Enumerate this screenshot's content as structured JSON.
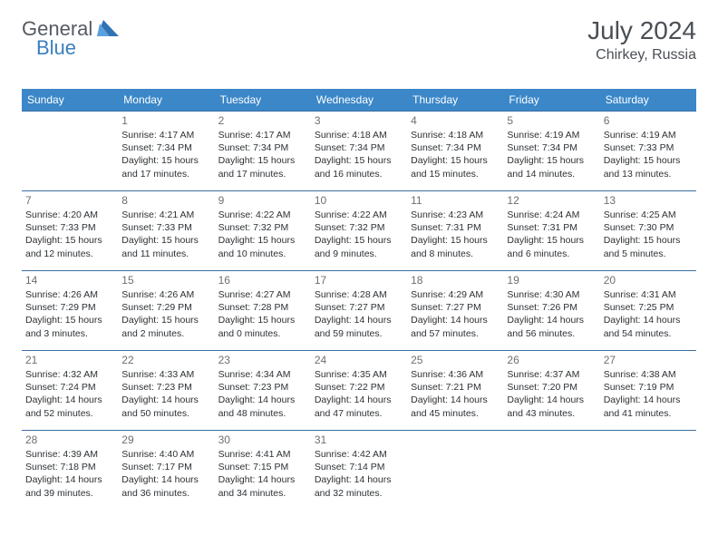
{
  "logo": {
    "general": "General",
    "blue": "Blue"
  },
  "header": {
    "title": "July 2024",
    "location": "Chirkey, Russia"
  },
  "colors": {
    "header_bg": "#3b87c8",
    "header_text": "#ffffff",
    "rule": "#3b6fa3",
    "daynum": "#6b7075",
    "body": "#2d3135",
    "month": "#4a4f55"
  },
  "daynames": [
    "Sunday",
    "Monday",
    "Tuesday",
    "Wednesday",
    "Thursday",
    "Friday",
    "Saturday"
  ],
  "weeks": [
    [
      null,
      {
        "n": "1",
        "l1": "Sunrise: 4:17 AM",
        "l2": "Sunset: 7:34 PM",
        "l3": "Daylight: 15 hours",
        "l4": "and 17 minutes."
      },
      {
        "n": "2",
        "l1": "Sunrise: 4:17 AM",
        "l2": "Sunset: 7:34 PM",
        "l3": "Daylight: 15 hours",
        "l4": "and 17 minutes."
      },
      {
        "n": "3",
        "l1": "Sunrise: 4:18 AM",
        "l2": "Sunset: 7:34 PM",
        "l3": "Daylight: 15 hours",
        "l4": "and 16 minutes."
      },
      {
        "n": "4",
        "l1": "Sunrise: 4:18 AM",
        "l2": "Sunset: 7:34 PM",
        "l3": "Daylight: 15 hours",
        "l4": "and 15 minutes."
      },
      {
        "n": "5",
        "l1": "Sunrise: 4:19 AM",
        "l2": "Sunset: 7:34 PM",
        "l3": "Daylight: 15 hours",
        "l4": "and 14 minutes."
      },
      {
        "n": "6",
        "l1": "Sunrise: 4:19 AM",
        "l2": "Sunset: 7:33 PM",
        "l3": "Daylight: 15 hours",
        "l4": "and 13 minutes."
      }
    ],
    [
      {
        "n": "7",
        "l1": "Sunrise: 4:20 AM",
        "l2": "Sunset: 7:33 PM",
        "l3": "Daylight: 15 hours",
        "l4": "and 12 minutes."
      },
      {
        "n": "8",
        "l1": "Sunrise: 4:21 AM",
        "l2": "Sunset: 7:33 PM",
        "l3": "Daylight: 15 hours",
        "l4": "and 11 minutes."
      },
      {
        "n": "9",
        "l1": "Sunrise: 4:22 AM",
        "l2": "Sunset: 7:32 PM",
        "l3": "Daylight: 15 hours",
        "l4": "and 10 minutes."
      },
      {
        "n": "10",
        "l1": "Sunrise: 4:22 AM",
        "l2": "Sunset: 7:32 PM",
        "l3": "Daylight: 15 hours",
        "l4": "and 9 minutes."
      },
      {
        "n": "11",
        "l1": "Sunrise: 4:23 AM",
        "l2": "Sunset: 7:31 PM",
        "l3": "Daylight: 15 hours",
        "l4": "and 8 minutes."
      },
      {
        "n": "12",
        "l1": "Sunrise: 4:24 AM",
        "l2": "Sunset: 7:31 PM",
        "l3": "Daylight: 15 hours",
        "l4": "and 6 minutes."
      },
      {
        "n": "13",
        "l1": "Sunrise: 4:25 AM",
        "l2": "Sunset: 7:30 PM",
        "l3": "Daylight: 15 hours",
        "l4": "and 5 minutes."
      }
    ],
    [
      {
        "n": "14",
        "l1": "Sunrise: 4:26 AM",
        "l2": "Sunset: 7:29 PM",
        "l3": "Daylight: 15 hours",
        "l4": "and 3 minutes."
      },
      {
        "n": "15",
        "l1": "Sunrise: 4:26 AM",
        "l2": "Sunset: 7:29 PM",
        "l3": "Daylight: 15 hours",
        "l4": "and 2 minutes."
      },
      {
        "n": "16",
        "l1": "Sunrise: 4:27 AM",
        "l2": "Sunset: 7:28 PM",
        "l3": "Daylight: 15 hours",
        "l4": "and 0 minutes."
      },
      {
        "n": "17",
        "l1": "Sunrise: 4:28 AM",
        "l2": "Sunset: 7:27 PM",
        "l3": "Daylight: 14 hours",
        "l4": "and 59 minutes."
      },
      {
        "n": "18",
        "l1": "Sunrise: 4:29 AM",
        "l2": "Sunset: 7:27 PM",
        "l3": "Daylight: 14 hours",
        "l4": "and 57 minutes."
      },
      {
        "n": "19",
        "l1": "Sunrise: 4:30 AM",
        "l2": "Sunset: 7:26 PM",
        "l3": "Daylight: 14 hours",
        "l4": "and 56 minutes."
      },
      {
        "n": "20",
        "l1": "Sunrise: 4:31 AM",
        "l2": "Sunset: 7:25 PM",
        "l3": "Daylight: 14 hours",
        "l4": "and 54 minutes."
      }
    ],
    [
      {
        "n": "21",
        "l1": "Sunrise: 4:32 AM",
        "l2": "Sunset: 7:24 PM",
        "l3": "Daylight: 14 hours",
        "l4": "and 52 minutes."
      },
      {
        "n": "22",
        "l1": "Sunrise: 4:33 AM",
        "l2": "Sunset: 7:23 PM",
        "l3": "Daylight: 14 hours",
        "l4": "and 50 minutes."
      },
      {
        "n": "23",
        "l1": "Sunrise: 4:34 AM",
        "l2": "Sunset: 7:23 PM",
        "l3": "Daylight: 14 hours",
        "l4": "and 48 minutes."
      },
      {
        "n": "24",
        "l1": "Sunrise: 4:35 AM",
        "l2": "Sunset: 7:22 PM",
        "l3": "Daylight: 14 hours",
        "l4": "and 47 minutes."
      },
      {
        "n": "25",
        "l1": "Sunrise: 4:36 AM",
        "l2": "Sunset: 7:21 PM",
        "l3": "Daylight: 14 hours",
        "l4": "and 45 minutes."
      },
      {
        "n": "26",
        "l1": "Sunrise: 4:37 AM",
        "l2": "Sunset: 7:20 PM",
        "l3": "Daylight: 14 hours",
        "l4": "and 43 minutes."
      },
      {
        "n": "27",
        "l1": "Sunrise: 4:38 AM",
        "l2": "Sunset: 7:19 PM",
        "l3": "Daylight: 14 hours",
        "l4": "and 41 minutes."
      }
    ],
    [
      {
        "n": "28",
        "l1": "Sunrise: 4:39 AM",
        "l2": "Sunset: 7:18 PM",
        "l3": "Daylight: 14 hours",
        "l4": "and 39 minutes."
      },
      {
        "n": "29",
        "l1": "Sunrise: 4:40 AM",
        "l2": "Sunset: 7:17 PM",
        "l3": "Daylight: 14 hours",
        "l4": "and 36 minutes."
      },
      {
        "n": "30",
        "l1": "Sunrise: 4:41 AM",
        "l2": "Sunset: 7:15 PM",
        "l3": "Daylight: 14 hours",
        "l4": "and 34 minutes."
      },
      {
        "n": "31",
        "l1": "Sunrise: 4:42 AM",
        "l2": "Sunset: 7:14 PM",
        "l3": "Daylight: 14 hours",
        "l4": "and 32 minutes."
      },
      null,
      null,
      null
    ]
  ]
}
